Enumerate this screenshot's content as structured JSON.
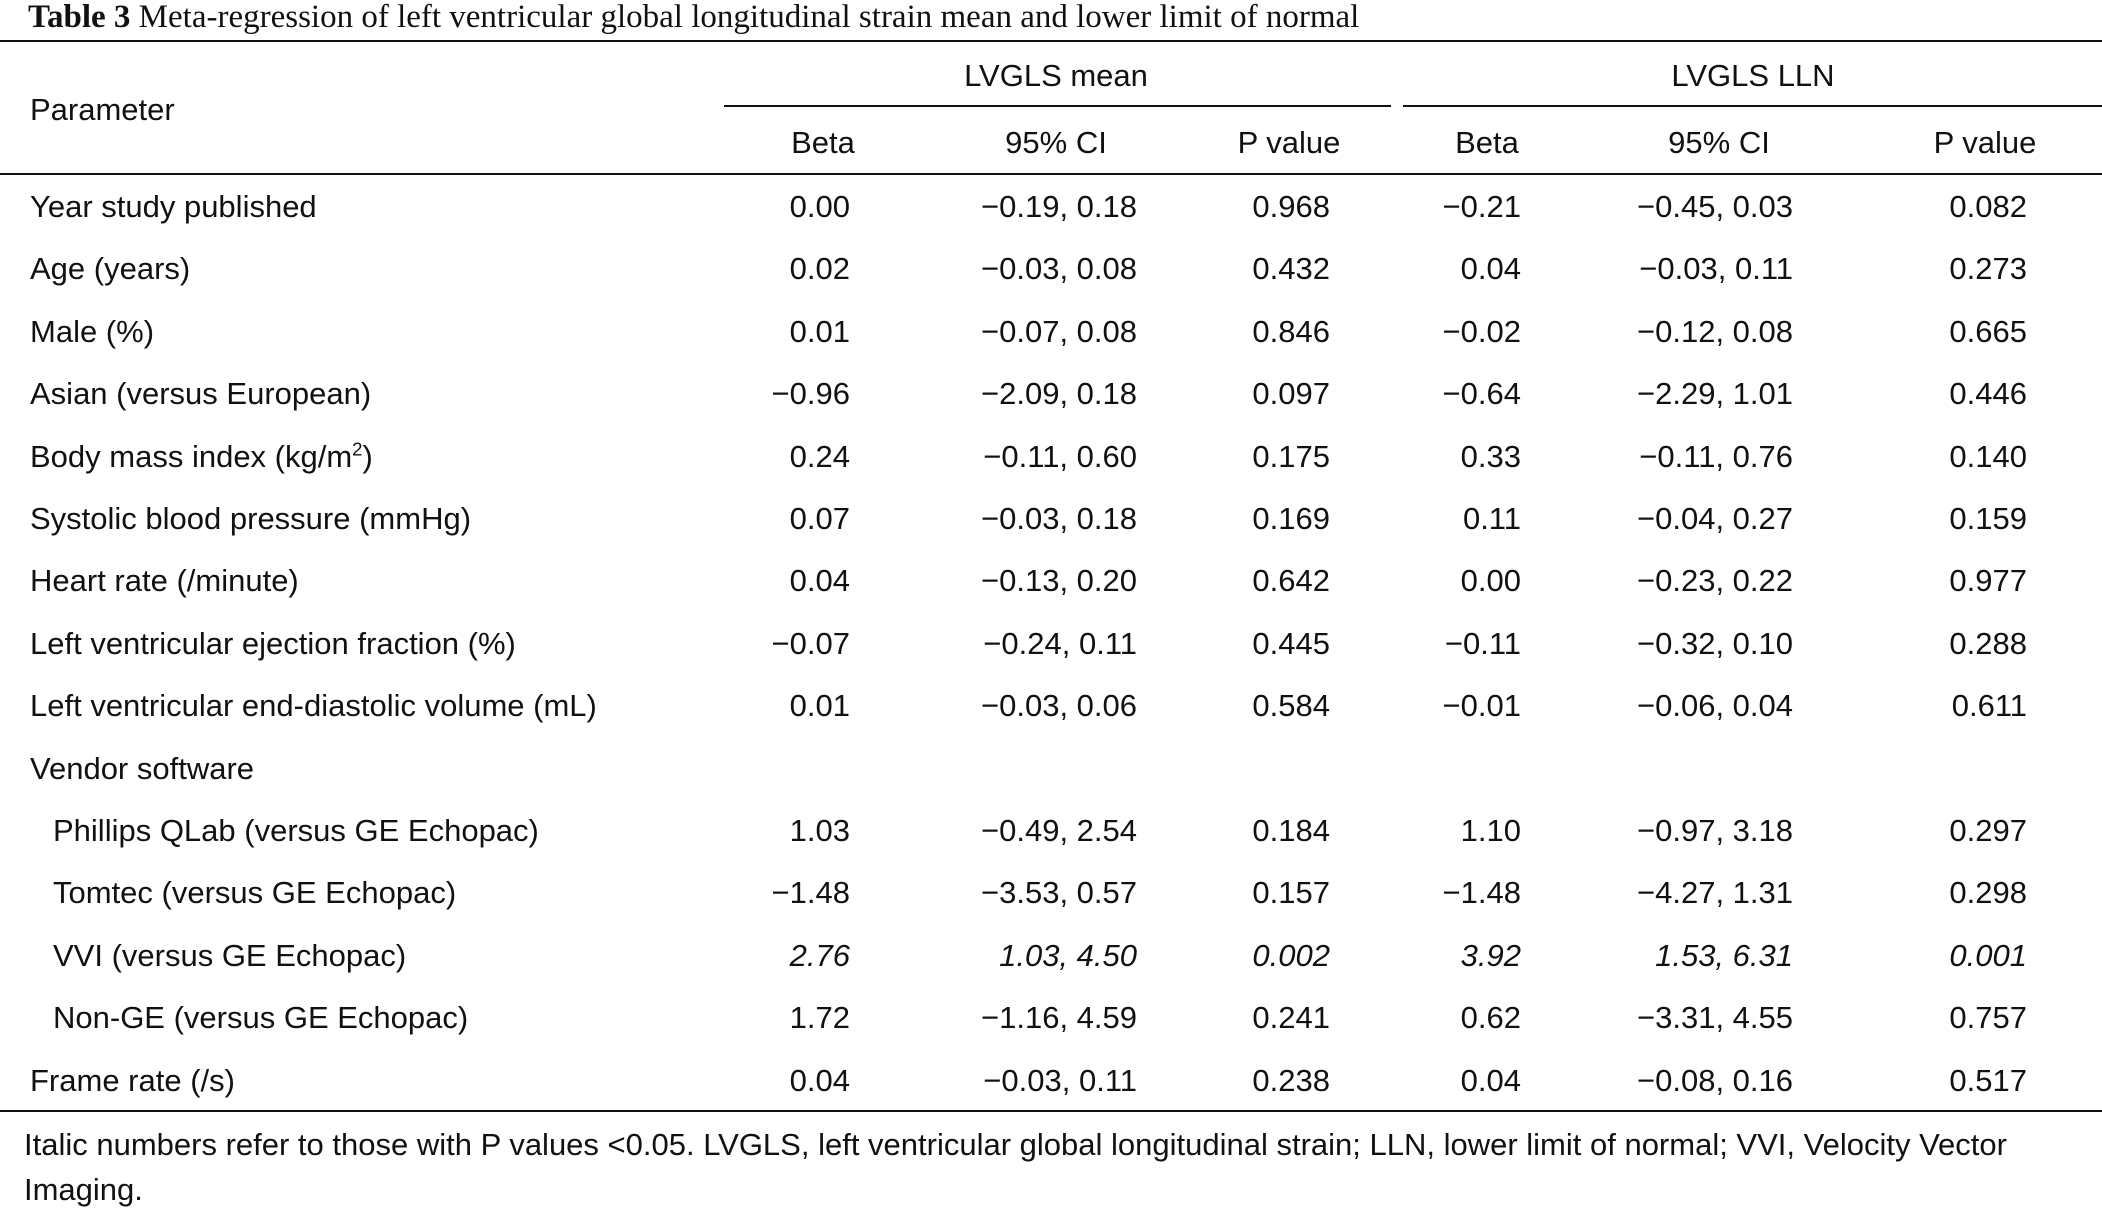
{
  "caption": {
    "label": "Table 3",
    "text": "Meta-regression of left ventricular global longitudinal strain mean and lower limit of normal"
  },
  "header": {
    "parameter": "Parameter",
    "group_mean": "LVGLS mean",
    "group_lln": "LVGLS LLN",
    "beta": "Beta",
    "ci": "95% CI",
    "p": "P value"
  },
  "rows": [
    {
      "label": "Year study published",
      "m_beta": "0.00",
      "m_ci": "−0.19, 0.18",
      "m_p": "0.968",
      "l_beta": "−0.21",
      "l_ci": "−0.45, 0.03",
      "l_p": "0.082"
    },
    {
      "label": "Age (years)",
      "m_beta": "0.02",
      "m_ci": "−0.03, 0.08",
      "m_p": "0.432",
      "l_beta": "0.04",
      "l_ci": "−0.03, 0.11",
      "l_p": "0.273"
    },
    {
      "label": "Male (%)",
      "m_beta": "0.01",
      "m_ci": "−0.07, 0.08",
      "m_p": "0.846",
      "l_beta": "−0.02",
      "l_ci": "−0.12, 0.08",
      "l_p": "0.665"
    },
    {
      "label": "Asian (versus European)",
      "m_beta": "−0.96",
      "m_ci": "−2.09, 0.18",
      "m_p": "0.097",
      "l_beta": "−0.64",
      "l_ci": "−2.29, 1.01",
      "l_p": "0.446"
    },
    {
      "label": "Body mass index (kg/m",
      "sup": "2",
      "label_tail": ")",
      "m_beta": "0.24",
      "m_ci": "−0.11, 0.60",
      "m_p": "0.175",
      "l_beta": "0.33",
      "l_ci": "−0.11, 0.76",
      "l_p": "0.140"
    },
    {
      "label": "Systolic blood pressure (mmHg)",
      "m_beta": "0.07",
      "m_ci": "−0.03, 0.18",
      "m_p": "0.169",
      "l_beta": "0.11",
      "l_ci": "−0.04, 0.27",
      "l_p": "0.159"
    },
    {
      "label": "Heart rate (/minute)",
      "m_beta": "0.04",
      "m_ci": "−0.13, 0.20",
      "m_p": "0.642",
      "l_beta": "0.00",
      "l_ci": "−0.23, 0.22",
      "l_p": "0.977"
    },
    {
      "label": "Left ventricular ejection fraction (%)",
      "m_beta": "−0.07",
      "m_ci": "−0.24, 0.11",
      "m_p": "0.445",
      "l_beta": "−0.11",
      "l_ci": "−0.32, 0.10",
      "l_p": "0.288"
    },
    {
      "label": "Left ventricular end-diastolic volume (mL)",
      "m_beta": "0.01",
      "m_ci": "−0.03, 0.06",
      "m_p": "0.584",
      "l_beta": "−0.01",
      "l_ci": "−0.06, 0.04",
      "l_p": "0.611"
    },
    {
      "label": "Vendor software",
      "m_beta": "",
      "m_ci": "",
      "m_p": "",
      "l_beta": "",
      "l_ci": "",
      "l_p": ""
    },
    {
      "label": "Phillips QLab (versus GE Echopac)",
      "m_beta": "1.03",
      "m_ci": "−0.49, 2.54",
      "m_p": "0.184",
      "l_beta": "1.10",
      "l_ci": "−0.97, 3.18",
      "l_p": "0.297"
    },
    {
      "label": "Tomtec (versus GE Echopac)",
      "m_beta": "−1.48",
      "m_ci": "−3.53, 0.57",
      "m_p": "0.157",
      "l_beta": "−1.48",
      "l_ci": "−4.27, 1.31",
      "l_p": "0.298"
    },
    {
      "label": "VVI (versus GE Echopac)",
      "m_beta": "2.76",
      "m_ci": "1.03, 4.50",
      "m_p": "0.002",
      "l_beta": "3.92",
      "l_ci": "1.53, 6.31",
      "l_p": "0.001"
    },
    {
      "label": "Non-GE (versus GE Echopac)",
      "m_beta": "1.72",
      "m_ci": "−1.16, 4.59",
      "m_p": "0.241",
      "l_beta": "0.62",
      "l_ci": "−3.31, 4.55",
      "l_p": "0.757"
    },
    {
      "label": "Frame rate (/s)",
      "m_beta": "0.04",
      "m_ci": "−0.03, 0.11",
      "m_p": "0.238",
      "l_beta": "0.04",
      "l_ci": "−0.08, 0.16",
      "l_p": "0.517"
    }
  ],
  "footnote": "Italic numbers refer to those with P values <0.05. LVGLS, left ventricular global longitudinal strain; LLN, lower limit of normal; VVI, Velocity Vector Imaging."
}
